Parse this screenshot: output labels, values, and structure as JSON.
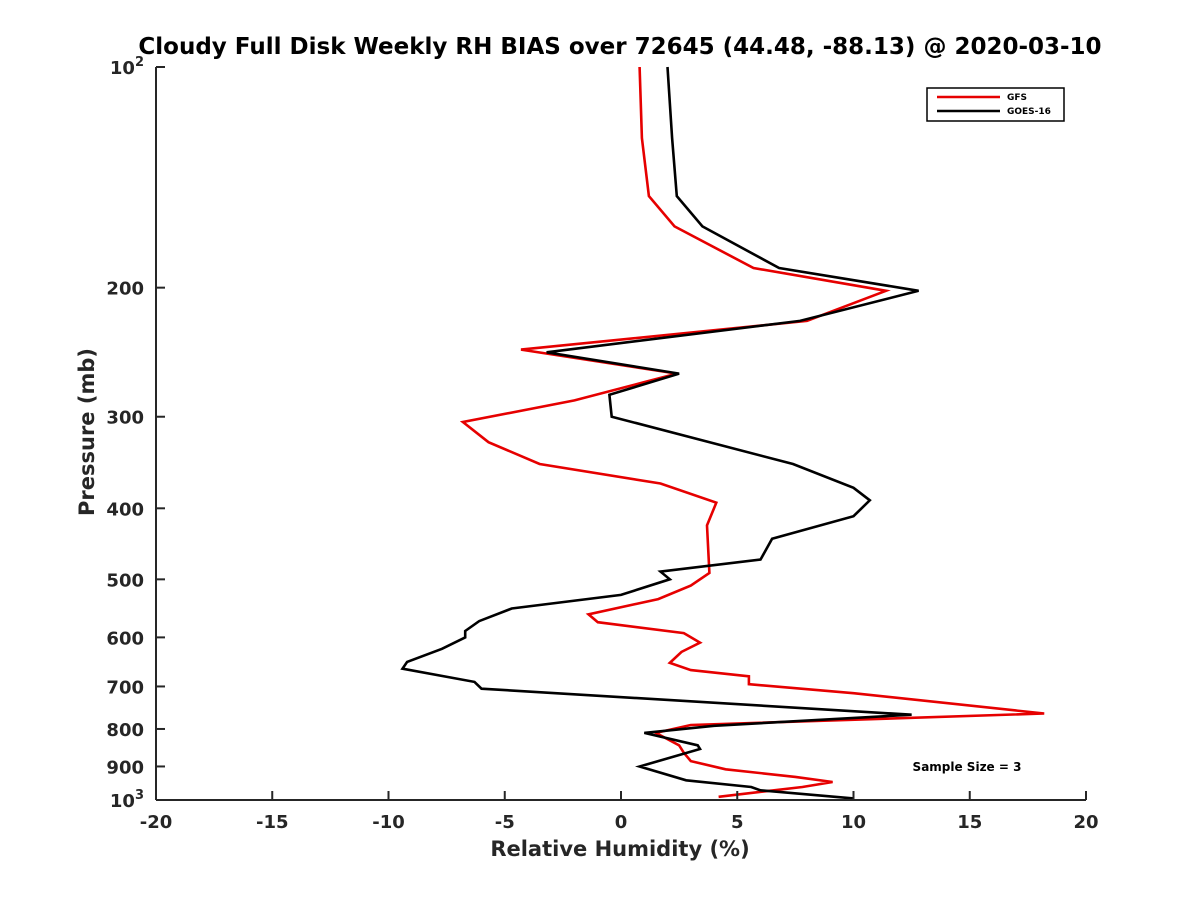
{
  "chart_data": {
    "type": "line",
    "title": "Cloudy Full Disk Weekly RH BIAS over 72645 (44.48, -88.13) @ 2020-03-10",
    "xlabel": "Relative Humidity (%)",
    "ylabel": "Pressure (mb)",
    "xlim": [
      -20,
      20
    ],
    "ylim": [
      100,
      1000
    ],
    "y_scale": "log",
    "y_reversed": true,
    "x_ticks": [
      "-20",
      "-15",
      "-10",
      "-5",
      "0",
      "5",
      "10",
      "15",
      "20"
    ],
    "y_ticks": [
      {
        "value": 100,
        "base": "10",
        "exp": "2",
        "label": ""
      },
      {
        "value": 200,
        "base": "",
        "exp": "",
        "label": "200"
      },
      {
        "value": 300,
        "base": "",
        "exp": "",
        "label": "300"
      },
      {
        "value": 400,
        "base": "",
        "exp": "",
        "label": "400"
      },
      {
        "value": 500,
        "base": "",
        "exp": "",
        "label": "500"
      },
      {
        "value": 600,
        "base": "",
        "exp": "",
        "label": "600"
      },
      {
        "value": 700,
        "base": "",
        "exp": "",
        "label": "700"
      },
      {
        "value": 800,
        "base": "",
        "exp": "",
        "label": "800"
      },
      {
        "value": 900,
        "base": "",
        "exp": "",
        "label": "900"
      },
      {
        "value": 1000,
        "base": "10",
        "exp": "3",
        "label": ""
      }
    ],
    "legend_position": "top-right",
    "annotation": "Sample Size = 3",
    "series": [
      {
        "name": "GFS",
        "color": "#e60000",
        "points": [
          [
            0.8,
            100
          ],
          [
            0.9,
            125
          ],
          [
            1.2,
            150
          ],
          [
            2.3,
            165
          ],
          [
            5.7,
            188
          ],
          [
            11.4,
            202
          ],
          [
            8.0,
            222
          ],
          [
            -4.3,
            243
          ],
          [
            2.4,
            262
          ],
          [
            -2.0,
            285
          ],
          [
            -6.8,
            305
          ],
          [
            -5.7,
            325
          ],
          [
            -3.5,
            348
          ],
          [
            1.7,
            370
          ],
          [
            4.1,
            393
          ],
          [
            3.7,
            422
          ],
          [
            3.8,
            490
          ],
          [
            3.0,
            510
          ],
          [
            1.6,
            532
          ],
          [
            -1.4,
            558
          ],
          [
            -1.0,
            572
          ],
          [
            2.7,
            592
          ],
          [
            3.4,
            610
          ],
          [
            2.6,
            628
          ],
          [
            2.1,
            650
          ],
          [
            3.0,
            665
          ],
          [
            5.5,
            678
          ],
          [
            5.5,
            695
          ],
          [
            10.0,
            715
          ],
          [
            18.2,
            762
          ],
          [
            3.0,
            790
          ],
          [
            1.5,
            810
          ],
          [
            2.5,
            842
          ],
          [
            2.7,
            862
          ],
          [
            3.0,
            885
          ],
          [
            4.5,
            908
          ],
          [
            7.5,
            930
          ],
          [
            9.1,
            945
          ],
          [
            7.8,
            960
          ],
          [
            4.2,
            990
          ]
        ]
      },
      {
        "name": "GOES-16",
        "color": "#000000",
        "points": [
          [
            2.0,
            100
          ],
          [
            2.2,
            125
          ],
          [
            2.4,
            150
          ],
          [
            3.5,
            165
          ],
          [
            6.8,
            188
          ],
          [
            12.8,
            202
          ],
          [
            7.7,
            222
          ],
          [
            -3.2,
            245
          ],
          [
            2.5,
            262
          ],
          [
            -0.5,
            280
          ],
          [
            -0.4,
            300
          ],
          [
            7.4,
            348
          ],
          [
            10.0,
            375
          ],
          [
            10.7,
            390
          ],
          [
            10.0,
            410
          ],
          [
            6.5,
            440
          ],
          [
            6.0,
            470
          ],
          [
            1.7,
            488
          ],
          [
            2.1,
            500
          ],
          [
            0.0,
            525
          ],
          [
            -4.7,
            548
          ],
          [
            -6.1,
            570
          ],
          [
            -6.7,
            588
          ],
          [
            -6.7,
            600
          ],
          [
            -7.7,
            622
          ],
          [
            -9.2,
            648
          ],
          [
            -9.4,
            662
          ],
          [
            -6.3,
            690
          ],
          [
            -6.0,
            705
          ],
          [
            12.5,
            765
          ],
          [
            4.0,
            792
          ],
          [
            1.0,
            810
          ],
          [
            3.3,
            842
          ],
          [
            3.4,
            852
          ],
          [
            0.8,
            900
          ],
          [
            2.8,
            940
          ],
          [
            5.6,
            960
          ],
          [
            6.0,
            970
          ],
          [
            10.0,
            995
          ]
        ]
      }
    ]
  }
}
